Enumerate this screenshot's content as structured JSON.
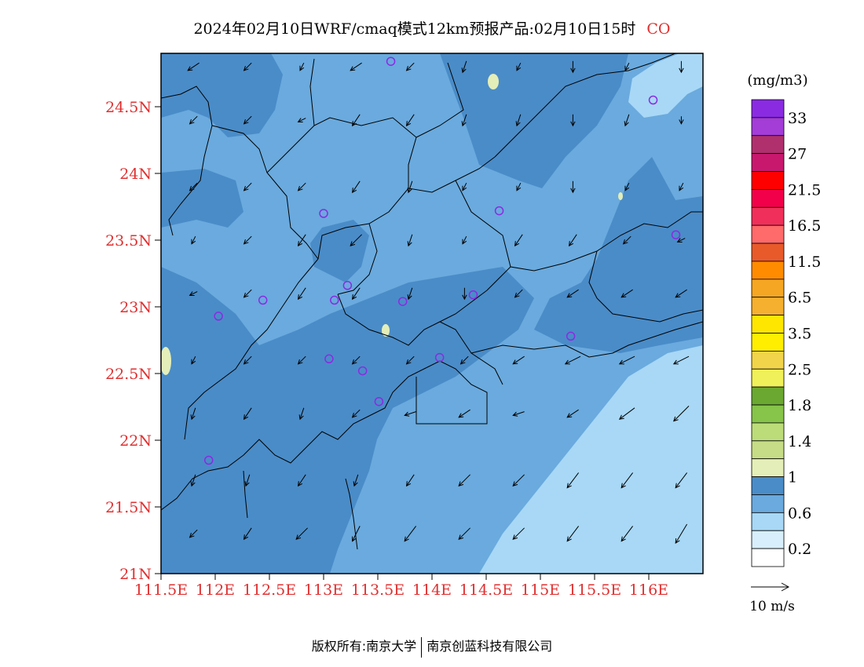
{
  "title": {
    "main": "2024年02月10日WRF/cmaq模式12km预报产品:02月10日15时",
    "species": "CO"
  },
  "axes": {
    "lat_labels": [
      "24.5N",
      "24N",
      "23.5N",
      "23N",
      "22.5N",
      "22N",
      "21.5N",
      "21N"
    ],
    "lat_values": [
      24.5,
      24.0,
      23.5,
      23.0,
      22.5,
      22.0,
      21.5,
      21.0
    ],
    "lon_labels": [
      "111.5E",
      "112E",
      "112.5E",
      "113E",
      "113.5E",
      "114E",
      "114.5E",
      "115E",
      "115.5E",
      "116E"
    ],
    "lon_values": [
      111.5,
      112.0,
      112.5,
      113.0,
      113.5,
      114.0,
      114.5,
      115.0,
      115.5,
      116.0
    ],
    "lon_range": [
      111.5,
      116.5
    ],
    "lat_range": [
      21.0,
      24.9
    ]
  },
  "legend": {
    "unit": "(mg/m3)",
    "levels": [
      "33",
      "27",
      "21.5",
      "16.5",
      "11.5",
      "6.5",
      "3.5",
      "2.5",
      "1.8",
      "1.4",
      "1",
      "0.6",
      "0.2"
    ],
    "colors_top_to_bottom": [
      "#8a2be2",
      "#a43cd8",
      "#b0306e",
      "#c8186e",
      "#ff0000",
      "#f2004a",
      "#f0305a",
      "#ff6a6a",
      "#e85a2a",
      "#ff8c00",
      "#f5a623",
      "#f5b030",
      "#ffe600",
      "#ffee00",
      "#f2d44a",
      "#f0f05a",
      "#6aa832",
      "#86c44a",
      "#bcdc7a",
      "#c6dc86",
      "#e4eeb8",
      "#4a8cc8",
      "#6aaade",
      "#a8d8f6",
      "#d8eefc",
      "#ffffff"
    ]
  },
  "wind_scale": {
    "label": "10 m/s"
  },
  "footer": {
    "left": "版权所有:南京大学",
    "right": "南京创蓝科技有限公司"
  },
  "colors": {
    "band_1_to_0_6": "#4a8cc8",
    "band_0_6_to_1": "#6aaade",
    "band_0_2_to_0_6": "#a8d8f6",
    "band_above_1": "#e4eeb8",
    "axis_label": "#e03030",
    "station_marker": "#8a2be2"
  },
  "stations": [
    {
      "lon": 113.62,
      "lat": 24.84
    },
    {
      "lon": 116.04,
      "lat": 24.55
    },
    {
      "lon": 113.0,
      "lat": 23.7
    },
    {
      "lon": 114.62,
      "lat": 23.72
    },
    {
      "lon": 116.25,
      "lat": 23.54
    },
    {
      "lon": 112.44,
      "lat": 23.05
    },
    {
      "lon": 112.03,
      "lat": 22.93
    },
    {
      "lon": 113.1,
      "lat": 23.05
    },
    {
      "lon": 113.22,
      "lat": 23.16
    },
    {
      "lon": 113.73,
      "lat": 23.04
    },
    {
      "lon": 114.38,
      "lat": 23.09
    },
    {
      "lon": 115.28,
      "lat": 22.78
    },
    {
      "lon": 113.05,
      "lat": 22.61
    },
    {
      "lon": 113.36,
      "lat": 22.52
    },
    {
      "lon": 114.07,
      "lat": 22.62
    },
    {
      "lon": 113.51,
      "lat": 22.29
    },
    {
      "lon": 111.94,
      "lat": 21.85
    }
  ],
  "wind_vectors": [
    {
      "lon": 111.8,
      "lat": 24.8,
      "u": -3,
      "v": -2
    },
    {
      "lon": 112.3,
      "lat": 24.8,
      "u": -2,
      "v": -2
    },
    {
      "lon": 112.8,
      "lat": 24.8,
      "u": -1,
      "v": -2
    },
    {
      "lon": 113.3,
      "lat": 24.8,
      "u": -3,
      "v": -2
    },
    {
      "lon": 113.8,
      "lat": 24.8,
      "u": -2,
      "v": -2
    },
    {
      "lon": 114.3,
      "lat": 24.8,
      "u": -1,
      "v": -3
    },
    {
      "lon": 114.8,
      "lat": 24.8,
      "u": -1,
      "v": -2
    },
    {
      "lon": 115.3,
      "lat": 24.8,
      "u": 0,
      "v": -3
    },
    {
      "lon": 115.8,
      "lat": 24.8,
      "u": -1,
      "v": -2
    },
    {
      "lon": 116.3,
      "lat": 24.8,
      "u": 0,
      "v": -3
    },
    {
      "lon": 111.8,
      "lat": 24.4,
      "u": -2,
      "v": -2
    },
    {
      "lon": 112.3,
      "lat": 24.4,
      "u": -2,
      "v": -2
    },
    {
      "lon": 112.8,
      "lat": 24.4,
      "u": -2,
      "v": -1
    },
    {
      "lon": 113.3,
      "lat": 24.4,
      "u": -2,
      "v": -3
    },
    {
      "lon": 113.8,
      "lat": 24.4,
      "u": -2,
      "v": -3
    },
    {
      "lon": 114.3,
      "lat": 24.4,
      "u": -1,
      "v": -3
    },
    {
      "lon": 114.8,
      "lat": 24.4,
      "u": -1,
      "v": -3
    },
    {
      "lon": 115.3,
      "lat": 24.4,
      "u": 0,
      "v": -3
    },
    {
      "lon": 115.8,
      "lat": 24.4,
      "u": -1,
      "v": -3
    },
    {
      "lon": 116.3,
      "lat": 24.4,
      "u": 0,
      "v": -2
    },
    {
      "lon": 111.8,
      "lat": 23.9,
      "u": -2,
      "v": -2
    },
    {
      "lon": 112.3,
      "lat": 23.9,
      "u": -2,
      "v": -2
    },
    {
      "lon": 112.8,
      "lat": 23.9,
      "u": -2,
      "v": -2
    },
    {
      "lon": 113.3,
      "lat": 23.9,
      "u": -2,
      "v": -3
    },
    {
      "lon": 113.8,
      "lat": 23.9,
      "u": -1,
      "v": -3
    },
    {
      "lon": 114.3,
      "lat": 23.9,
      "u": -1,
      "v": -2
    },
    {
      "lon": 114.8,
      "lat": 23.9,
      "u": -1,
      "v": -2
    },
    {
      "lon": 115.3,
      "lat": 23.9,
      "u": 0,
      "v": -3
    },
    {
      "lon": 115.8,
      "lat": 23.9,
      "u": -1,
      "v": -2
    },
    {
      "lon": 116.3,
      "lat": 23.9,
      "u": -1,
      "v": -2
    },
    {
      "lon": 111.8,
      "lat": 23.5,
      "u": -1,
      "v": -2
    },
    {
      "lon": 112.3,
      "lat": 23.5,
      "u": -2,
      "v": -2
    },
    {
      "lon": 112.8,
      "lat": 23.5,
      "u": -2,
      "v": -3
    },
    {
      "lon": 113.3,
      "lat": 23.5,
      "u": -3,
      "v": -3
    },
    {
      "lon": 113.8,
      "lat": 23.5,
      "u": -1,
      "v": -3
    },
    {
      "lon": 114.3,
      "lat": 23.5,
      "u": -1,
      "v": -2
    },
    {
      "lon": 114.8,
      "lat": 23.5,
      "u": -2,
      "v": -3
    },
    {
      "lon": 115.3,
      "lat": 23.5,
      "u": -2,
      "v": -3
    },
    {
      "lon": 115.8,
      "lat": 23.5,
      "u": -2,
      "v": -2
    },
    {
      "lon": 116.3,
      "lat": 23.5,
      "u": -2,
      "v": -1
    },
    {
      "lon": 111.8,
      "lat": 23.1,
      "u": -2,
      "v": -1
    },
    {
      "lon": 112.3,
      "lat": 23.1,
      "u": -2,
      "v": -2
    },
    {
      "lon": 112.8,
      "lat": 23.1,
      "u": -2,
      "v": -3
    },
    {
      "lon": 113.3,
      "lat": 23.1,
      "u": -2,
      "v": -3
    },
    {
      "lon": 113.8,
      "lat": 23.1,
      "u": -1,
      "v": -3
    },
    {
      "lon": 114.3,
      "lat": 23.1,
      "u": 0,
      "v": -3
    },
    {
      "lon": 114.8,
      "lat": 23.1,
      "u": -2,
      "v": -2
    },
    {
      "lon": 115.3,
      "lat": 23.1,
      "u": -3,
      "v": -2
    },
    {
      "lon": 115.8,
      "lat": 23.1,
      "u": -3,
      "v": -2
    },
    {
      "lon": 116.3,
      "lat": 23.1,
      "u": -3,
      "v": -2
    },
    {
      "lon": 111.8,
      "lat": 22.6,
      "u": -1,
      "v": -2
    },
    {
      "lon": 112.3,
      "lat": 22.6,
      "u": -2,
      "v": -2
    },
    {
      "lon": 112.8,
      "lat": 22.6,
      "u": -2,
      "v": -2
    },
    {
      "lon": 113.3,
      "lat": 22.6,
      "u": -2,
      "v": -2
    },
    {
      "lon": 113.8,
      "lat": 22.6,
      "u": -2,
      "v": -2
    },
    {
      "lon": 114.3,
      "lat": 22.6,
      "u": -2,
      "v": -2
    },
    {
      "lon": 114.8,
      "lat": 22.6,
      "u": -3,
      "v": -2
    },
    {
      "lon": 115.3,
      "lat": 22.6,
      "u": -4,
      "v": -2
    },
    {
      "lon": 115.8,
      "lat": 22.6,
      "u": -4,
      "v": -2
    },
    {
      "lon": 116.3,
      "lat": 22.6,
      "u": -4,
      "v": -2
    },
    {
      "lon": 111.8,
      "lat": 22.2,
      "u": -1,
      "v": -3
    },
    {
      "lon": 112.3,
      "lat": 22.2,
      "u": -2,
      "v": -3
    },
    {
      "lon": 112.8,
      "lat": 22.2,
      "u": -1,
      "v": -3
    },
    {
      "lon": 113.3,
      "lat": 22.2,
      "u": -2,
      "v": -2
    },
    {
      "lon": 113.8,
      "lat": 22.2,
      "u": -3,
      "v": -1
    },
    {
      "lon": 114.3,
      "lat": 22.2,
      "u": -3,
      "v": -2
    },
    {
      "lon": 114.8,
      "lat": 22.2,
      "u": -3,
      "v": -1
    },
    {
      "lon": 115.3,
      "lat": 22.2,
      "u": -3,
      "v": -2
    },
    {
      "lon": 115.8,
      "lat": 22.2,
      "u": -4,
      "v": -3
    },
    {
      "lon": 116.3,
      "lat": 22.2,
      "u": -4,
      "v": -4
    },
    {
      "lon": 111.8,
      "lat": 21.7,
      "u": -1,
      "v": -3
    },
    {
      "lon": 112.3,
      "lat": 21.7,
      "u": -1,
      "v": -3
    },
    {
      "lon": 112.8,
      "lat": 21.7,
      "u": -2,
      "v": -3
    },
    {
      "lon": 113.3,
      "lat": 21.7,
      "u": -1,
      "v": -3
    },
    {
      "lon": 113.8,
      "lat": 21.7,
      "u": -2,
      "v": -3
    },
    {
      "lon": 114.3,
      "lat": 21.7,
      "u": -3,
      "v": -3
    },
    {
      "lon": 114.8,
      "lat": 21.7,
      "u": -3,
      "v": -3
    },
    {
      "lon": 115.3,
      "lat": 21.7,
      "u": -3,
      "v": -4
    },
    {
      "lon": 115.8,
      "lat": 21.7,
      "u": -3,
      "v": -4
    },
    {
      "lon": 116.3,
      "lat": 21.7,
      "u": -3,
      "v": -4
    },
    {
      "lon": 111.8,
      "lat": 21.3,
      "u": -2,
      "v": -2
    },
    {
      "lon": 112.3,
      "lat": 21.3,
      "u": -2,
      "v": -3
    },
    {
      "lon": 112.8,
      "lat": 21.3,
      "u": -3,
      "v": -3
    },
    {
      "lon": 113.3,
      "lat": 21.3,
      "u": -2,
      "v": -4
    },
    {
      "lon": 113.8,
      "lat": 21.3,
      "u": -3,
      "v": -4
    },
    {
      "lon": 114.3,
      "lat": 21.3,
      "u": -3,
      "v": -3
    },
    {
      "lon": 114.8,
      "lat": 21.3,
      "u": -3,
      "v": -3
    },
    {
      "lon": 115.3,
      "lat": 21.3,
      "u": -3,
      "v": -4
    },
    {
      "lon": 115.8,
      "lat": 21.3,
      "u": -3,
      "v": -4
    },
    {
      "lon": 116.3,
      "lat": 21.3,
      "u": -3,
      "v": -5
    }
  ]
}
